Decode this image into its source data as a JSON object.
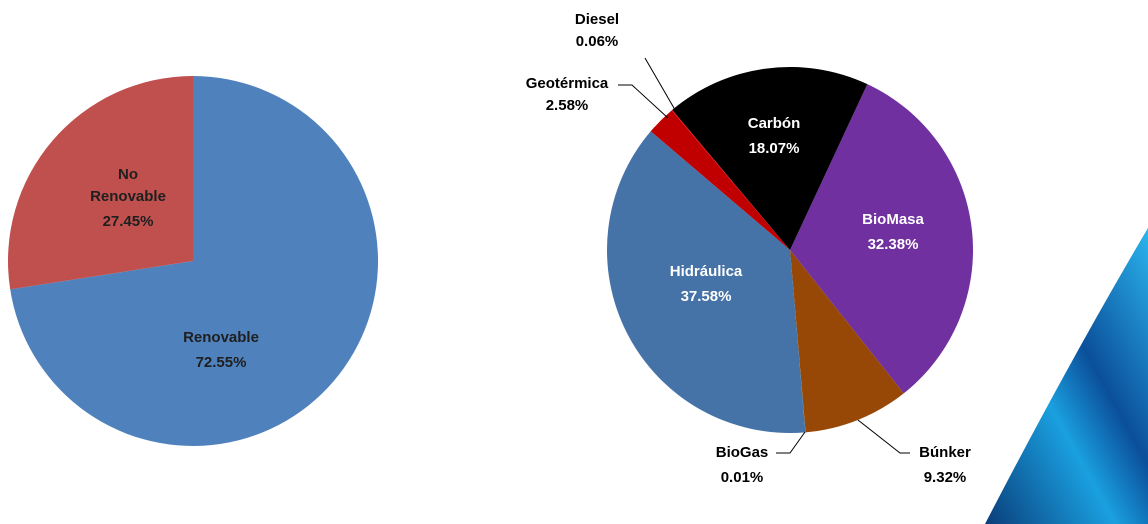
{
  "chart_data": [
    {
      "type": "pie",
      "categories": [
        "Renovable",
        "No Renovable"
      ],
      "values": [
        72.55,
        27.45
      ],
      "value_labels": [
        "72.55%",
        "27.45%"
      ],
      "colors": [
        "#4f81bd",
        "#c0504d"
      ]
    },
    {
      "type": "pie",
      "categories": [
        "BioMasa",
        "Búnker",
        "BioGas",
        "Hidráulica",
        "Geotérmica",
        "Diesel",
        "Carbón"
      ],
      "values": [
        32.38,
        9.32,
        0.01,
        37.58,
        2.58,
        0.06,
        18.07
      ],
      "value_labels": [
        "32.38%",
        "9.32%",
        "0.01%",
        "37.58%",
        "2.58%",
        "0.06%",
        "18.07%"
      ],
      "colors": [
        "#7030a0",
        "#974806",
        "#9bbb59",
        "#4572a7",
        "#c00000",
        "#ff0000",
        "#000000"
      ]
    }
  ]
}
